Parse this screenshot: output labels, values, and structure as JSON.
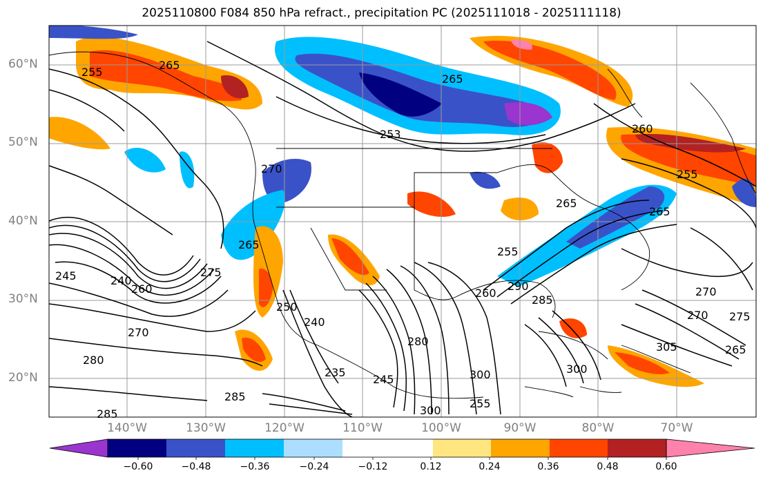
{
  "title": "2025110800 F084 850 hPa refract., precipitation PC (2025111018 - 2025111118)",
  "lat_labels": [
    "60°N",
    "50°N",
    "40°N",
    "30°N",
    "20°N"
  ],
  "lon_labels": [
    "140°W",
    "130°W",
    "120°W",
    "110°W",
    "100°W",
    "90°W",
    "80°W",
    "70°W"
  ],
  "colorbar": {
    "colors": [
      "#9a35d0",
      "#000080",
      "#3a52c8",
      "#00bfff",
      "#acdfff",
      "#ffffff",
      "#ffe680",
      "#ffa500",
      "#ff4500",
      "#b22222",
      "#ff82ab"
    ],
    "ticks": [
      "−0.60",
      "−0.48",
      "−0.36",
      "−0.24",
      "−0.12",
      "0.12",
      "0.24",
      "0.36",
      "0.48",
      "0.60"
    ]
  },
  "contour_labels": [
    "265",
    "253",
    "260",
    "255",
    "265",
    "255",
    "265",
    "270",
    "275",
    "270",
    "265",
    "305",
    "270",
    "280",
    "285",
    "285",
    "240",
    "260",
    "245",
    "250",
    "240",
    "235",
    "245",
    "280",
    "300",
    "300",
    "255",
    "260",
    "300",
    "290",
    "285",
    "275",
    "265",
    "270",
    "255",
    "265"
  ],
  "colors": {
    "grid": "#9a9a9a",
    "contour": "#000000",
    "coast": "#000000"
  }
}
